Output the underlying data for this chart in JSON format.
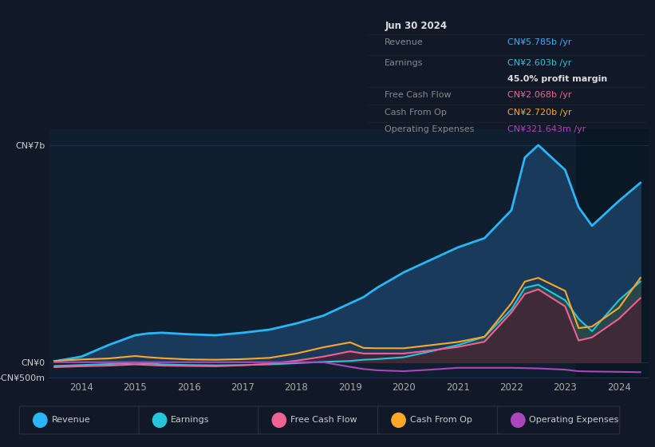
{
  "background_color": "#111827",
  "plot_bg_color": "#0f1f30",
  "colors": {
    "revenue": "#29b6f6",
    "earnings": "#26c6da",
    "free_cash_flow": "#f06292",
    "cash_from_op": "#ffa726",
    "operating_expenses": "#ab47bc"
  },
  "fill_revenue": "#1a3a5c",
  "fill_earnings": "#2a4a4a",
  "fill_fcf": "#4a2030",
  "x_years": [
    2013.5,
    2014.0,
    2014.5,
    2015.0,
    2015.25,
    2015.5,
    2016.0,
    2016.5,
    2017.0,
    2017.5,
    2018.0,
    2018.5,
    2019.0,
    2019.25,
    2019.5,
    2020.0,
    2020.5,
    2021.0,
    2021.5,
    2022.0,
    2022.25,
    2022.5,
    2023.0,
    2023.25,
    2023.5,
    2024.0,
    2024.4
  ],
  "revenue": [
    30,
    180,
    550,
    870,
    930,
    950,
    900,
    870,
    950,
    1050,
    1250,
    1500,
    1900,
    2100,
    2400,
    2900,
    3300,
    3700,
    4000,
    4900,
    6600,
    7000,
    6200,
    5000,
    4400,
    5200,
    5785
  ],
  "earnings": [
    -120,
    -90,
    -60,
    -20,
    -40,
    -70,
    -90,
    -100,
    -90,
    -70,
    -30,
    10,
    40,
    80,
    100,
    160,
    350,
    550,
    820,
    1700,
    2400,
    2500,
    2000,
    1400,
    1000,
    2000,
    2603
  ],
  "free_cash_flow": [
    -160,
    -130,
    -110,
    -70,
    -90,
    -110,
    -120,
    -130,
    -100,
    -50,
    50,
    180,
    350,
    280,
    280,
    280,
    380,
    490,
    660,
    1600,
    2200,
    2350,
    1800,
    700,
    800,
    1400,
    2068
  ],
  "cash_from_op": [
    40,
    90,
    120,
    200,
    160,
    130,
    90,
    80,
    100,
    140,
    280,
    480,
    640,
    460,
    450,
    450,
    550,
    650,
    820,
    1900,
    2600,
    2720,
    2300,
    1100,
    1150,
    1750,
    2720
  ],
  "operating_expenses": [
    0,
    0,
    0,
    0,
    0,
    0,
    0,
    0,
    0,
    0,
    0,
    0,
    -150,
    -220,
    -260,
    -290,
    -240,
    -180,
    -180,
    -180,
    -190,
    -200,
    -240,
    -290,
    -300,
    -310,
    -322
  ],
  "ylim_min": -500,
  "ylim_max": 7500,
  "ytick_vals": [
    -500,
    0,
    7000
  ],
  "ytick_labels": [
    "-CN¥500m",
    "CN¥0",
    "CN¥7b"
  ],
  "x_tick_positions": [
    2014,
    2015,
    2016,
    2017,
    2018,
    2019,
    2020,
    2021,
    2022,
    2023,
    2024
  ],
  "x_tick_labels": [
    "2014",
    "2015",
    "2016",
    "2017",
    "2018",
    "2019",
    "2020",
    "2021",
    "2022",
    "2023",
    "2024"
  ],
  "grid_color": "#1e3050",
  "shade_start": 2023.2,
  "tooltip": {
    "date": "Jun 30 2024",
    "revenue_val": "CN¥5.785b",
    "earnings_val": "CN¥2.603b",
    "profit_margin": "45.0%",
    "fcf_val": "CN¥2.068b",
    "cash_op_val": "CN¥2.720b",
    "opex_val": "CN¥321.643m"
  },
  "legend": [
    {
      "label": "Revenue",
      "color": "#29b6f6"
    },
    {
      "label": "Earnings",
      "color": "#26c6da"
    },
    {
      "label": "Free Cash Flow",
      "color": "#f06292"
    },
    {
      "label": "Cash From Op",
      "color": "#ffa726"
    },
    {
      "label": "Operating Expenses",
      "color": "#ab47bc"
    }
  ]
}
